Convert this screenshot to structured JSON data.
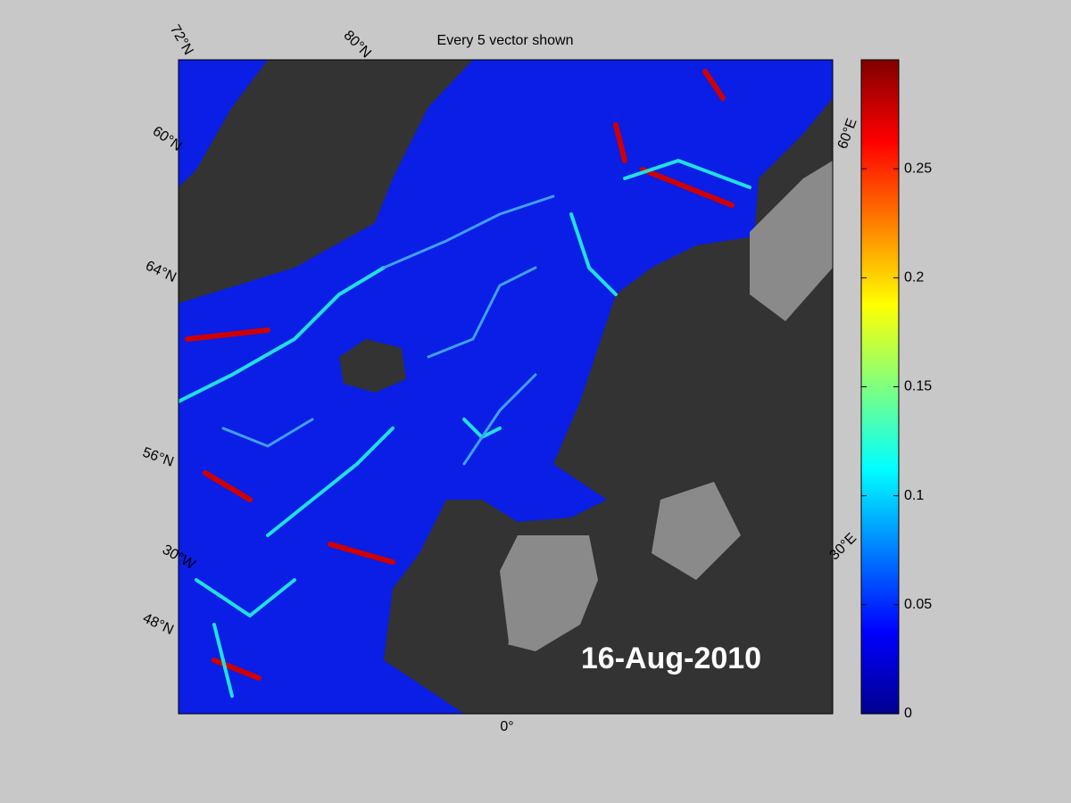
{
  "title": "Every 5 vector shown",
  "date_label": "16-Aug-2010",
  "map_labels": [
    "72°N",
    "80°N",
    "60°N",
    "64°N",
    "56°N",
    "30°W",
    "48°N",
    "0°",
    "60°E",
    "30°E"
  ],
  "colorbar": {
    "lim": [
      0,
      0.3
    ],
    "ticks": [
      0,
      0.05,
      0.1,
      0.15,
      0.2,
      0.25
    ]
  }
}
